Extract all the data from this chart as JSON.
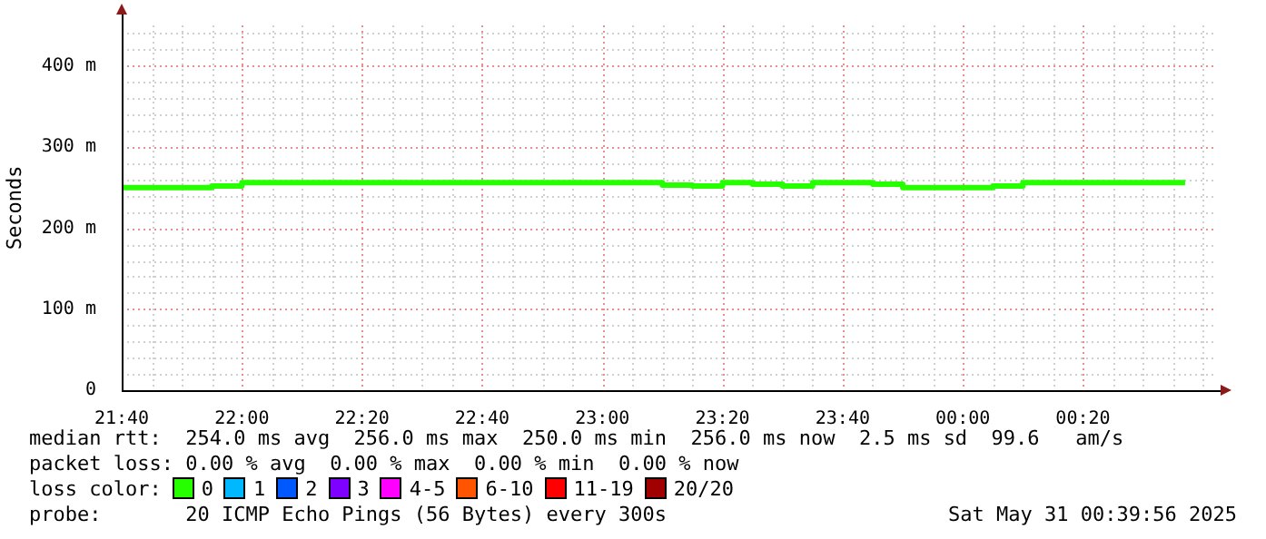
{
  "chart_data": {
    "type": "step",
    "ylabel": "Seconds",
    "legend_title": "loss color:",
    "legend": "bottom",
    "grid": true,
    "line_style": "solid",
    "marker": "none",
    "xlim": [
      "2025-05-30T21:40",
      "2025-05-31T00:42"
    ],
    "xticks": [
      {
        "value": "2025-05-30T21:40",
        "label": "21:40"
      },
      {
        "value": "2025-05-30T22:00",
        "label": "22:00"
      },
      {
        "value": "2025-05-30T22:20",
        "label": "22:20"
      },
      {
        "value": "2025-05-30T22:40",
        "label": "22:40"
      },
      {
        "value": "2025-05-30T23:00",
        "label": "23:00"
      },
      {
        "value": "2025-05-30T23:20",
        "label": "23:20"
      },
      {
        "value": "2025-05-30T23:40",
        "label": "23:40"
      },
      {
        "value": "2025-05-31T00:00",
        "label": "00:00"
      },
      {
        "value": "2025-05-31T00:20",
        "label": "00:20"
      }
    ],
    "ylim": [
      0,
      450
    ],
    "yticks": [
      {
        "value": 0,
        "label": "0"
      },
      {
        "value": 100,
        "label": "100 m"
      },
      {
        "value": 200,
        "label": "200 m"
      },
      {
        "value": 300,
        "label": "300 m"
      },
      {
        "value": 400,
        "label": "400 m"
      }
    ],
    "x": [
      "2025-05-30T21:40",
      "2025-05-30T21:45",
      "2025-05-30T21:50",
      "2025-05-30T21:55",
      "2025-05-30T22:00",
      "2025-05-30T22:05",
      "2025-05-30T22:10",
      "2025-05-30T22:15",
      "2025-05-30T22:20",
      "2025-05-30T22:25",
      "2025-05-30T22:30",
      "2025-05-30T22:35",
      "2025-05-30T22:40",
      "2025-05-30T22:45",
      "2025-05-30T22:50",
      "2025-05-30T22:55",
      "2025-05-30T23:00",
      "2025-05-30T23:05",
      "2025-05-30T23:10",
      "2025-05-30T23:15",
      "2025-05-30T23:20",
      "2025-05-30T23:25",
      "2025-05-30T23:30",
      "2025-05-30T23:35",
      "2025-05-30T23:40",
      "2025-05-30T23:45",
      "2025-05-30T23:50",
      "2025-05-30T23:55",
      "2025-05-31T00:00",
      "2025-05-31T00:05",
      "2025-05-31T00:10",
      "2025-05-31T00:15",
      "2025-05-31T00:20",
      "2025-05-31T00:25",
      "2025-05-31T00:30",
      "2025-05-31T00:35",
      "2025-05-31T00:37"
    ],
    "series": [
      {
        "name": "0",
        "color": "#26ff00",
        "values": [
          250,
          250,
          250,
          250,
          252,
          256,
          256,
          256,
          256,
          256,
          256,
          256,
          256,
          256,
          256,
          256,
          256,
          256,
          256,
          253,
          252,
          256,
          254,
          252,
          256,
          256,
          254,
          250,
          250,
          250,
          252,
          256,
          256,
          256,
          256,
          256,
          256
        ]
      },
      {
        "name": "1",
        "color": "#00b8ff",
        "values": [
          null,
          null,
          null,
          null,
          null,
          null,
          null,
          null,
          null,
          null,
          null,
          null,
          null,
          null,
          null,
          null,
          null,
          null,
          null,
          null,
          null,
          null,
          null,
          null,
          null,
          null,
          null,
          null,
          null,
          null,
          null,
          null,
          null,
          null,
          null,
          null,
          null
        ]
      },
      {
        "name": "2",
        "color": "#0059ff",
        "values": [
          null,
          null,
          null,
          null,
          null,
          null,
          null,
          null,
          null,
          null,
          null,
          null,
          null,
          null,
          null,
          null,
          null,
          null,
          null,
          null,
          null,
          null,
          null,
          null,
          null,
          null,
          null,
          null,
          null,
          null,
          null,
          null,
          null,
          null,
          null,
          null,
          null
        ]
      },
      {
        "name": "3",
        "color": "#7e00ff",
        "values": [
          null,
          null,
          null,
          null,
          null,
          null,
          null,
          null,
          null,
          null,
          null,
          null,
          null,
          null,
          null,
          null,
          null,
          null,
          null,
          null,
          null,
          null,
          null,
          null,
          null,
          null,
          null,
          null,
          null,
          null,
          null,
          null,
          null,
          null,
          null,
          null,
          null
        ]
      },
      {
        "name": "4-5",
        "color": "#ff00ff",
        "values": [
          null,
          null,
          null,
          null,
          null,
          null,
          null,
          null,
          null,
          null,
          null,
          null,
          null,
          null,
          null,
          null,
          null,
          null,
          null,
          null,
          null,
          null,
          null,
          null,
          null,
          null,
          null,
          null,
          null,
          null,
          null,
          null,
          null,
          null,
          null,
          null,
          null
        ]
      },
      {
        "name": "6-10",
        "color": "#ff5500",
        "values": [
          null,
          null,
          null,
          null,
          null,
          null,
          null,
          null,
          null,
          null,
          null,
          null,
          null,
          null,
          null,
          null,
          null,
          null,
          null,
          null,
          null,
          null,
          null,
          null,
          null,
          null,
          null,
          null,
          null,
          null,
          null,
          null,
          null,
          null,
          null,
          null,
          null
        ]
      },
      {
        "name": "11-19",
        "color": "#ff0000",
        "values": [
          null,
          null,
          null,
          null,
          null,
          null,
          null,
          null,
          null,
          null,
          null,
          null,
          null,
          null,
          null,
          null,
          null,
          null,
          null,
          null,
          null,
          null,
          null,
          null,
          null,
          null,
          null,
          null,
          null,
          null,
          null,
          null,
          null,
          null,
          null,
          null,
          null
        ]
      },
      {
        "name": "20/20",
        "color": "#a10000",
        "values": [
          null,
          null,
          null,
          null,
          null,
          null,
          null,
          null,
          null,
          null,
          null,
          null,
          null,
          null,
          null,
          null,
          null,
          null,
          null,
          null,
          null,
          null,
          null,
          null,
          null,
          null,
          null,
          null,
          null,
          null,
          null,
          null,
          null,
          null,
          null,
          null,
          null
        ]
      }
    ],
    "annotations": [
      "median rtt:  254.0 ms avg  256.0 ms max  250.0 ms min  256.0 ms now  2.5 ms sd  99.6   am/s",
      "packet loss: 0.00 % avg  0.00 % max  0.00 % min  0.00 % now",
      "probe:       20 ICMP Echo Pings (56 Bytes) every 300s",
      "Sat May 31 00:39:56 2025"
    ]
  }
}
